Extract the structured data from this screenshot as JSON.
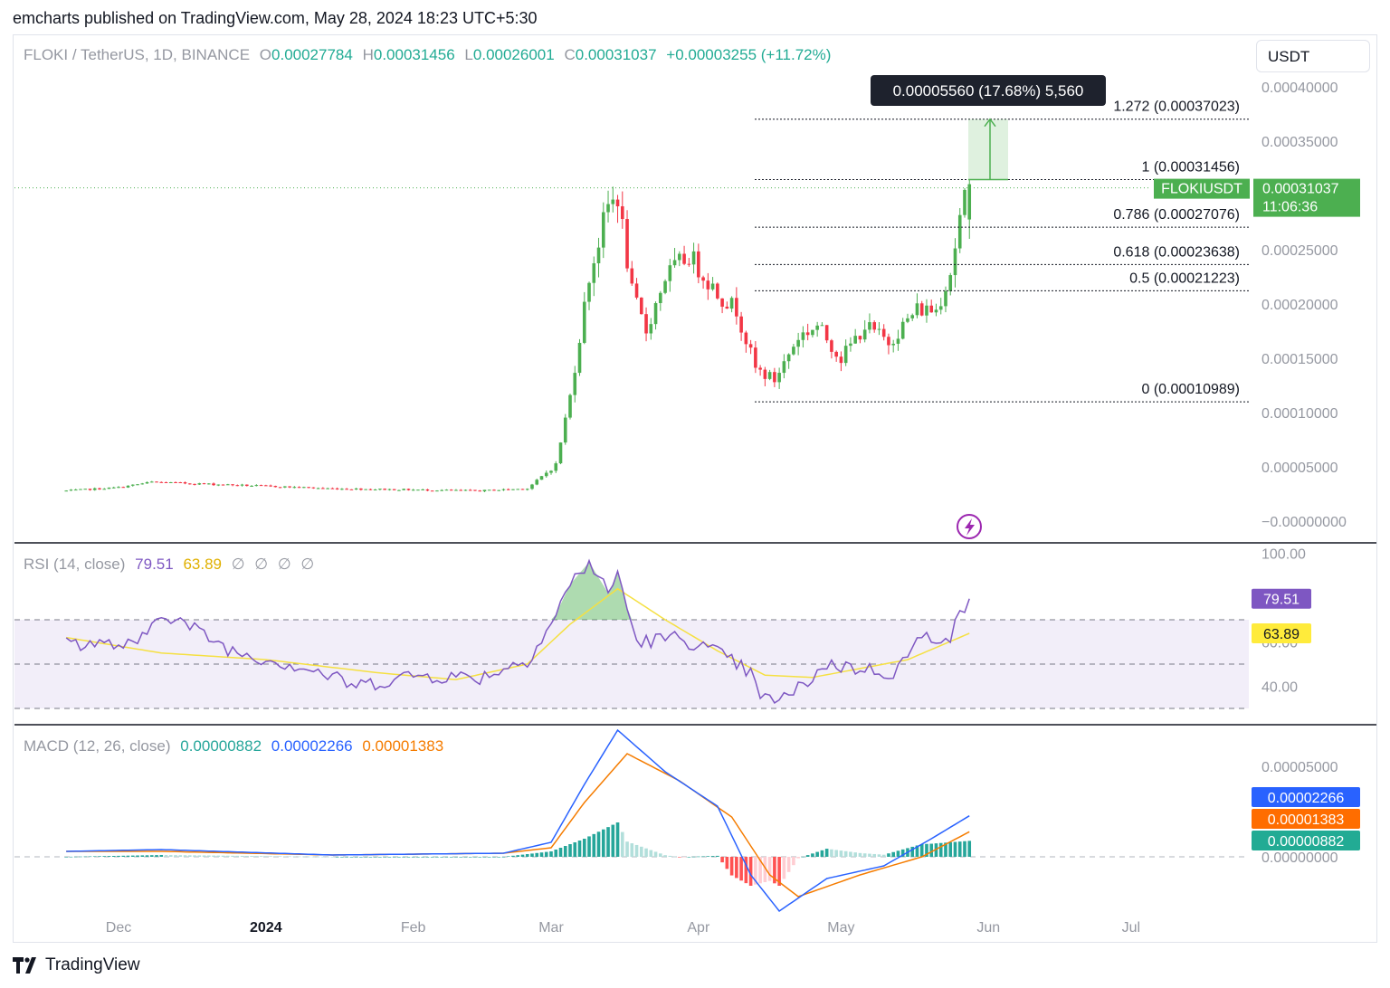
{
  "header": {
    "publish_line": "emcharts published on TradingView.com, May 28, 2024 18:23 UTC+5:30"
  },
  "symbol": {
    "title": "FLOKI / TetherUS, 1D, BINANCE",
    "o_label": "O",
    "o": "0.00027784",
    "h_label": "H",
    "h": "0.00031456",
    "l_label": "L",
    "l": "0.00026001",
    "c_label": "C",
    "c": "0.00031037",
    "change": "+0.00003255 (+11.72%)"
  },
  "currency_button": "USDT",
  "price_tag": {
    "symbol": "FLOKIUSDT",
    "price": "0.00031037",
    "countdown": "11:06:36"
  },
  "measure_tooltip": "0.00005560 (17.68%) 5,560",
  "rsi": {
    "title": "RSI (14, close)",
    "value": "79.51",
    "ma": "63.89",
    "flags": [
      "∅",
      "∅",
      "∅",
      "∅"
    ],
    "value_tag": "79.51",
    "ma_tag": "63.89",
    "axis_labels": [
      "100.00",
      "60.00",
      "40.00"
    ]
  },
  "macd": {
    "title": "MACD (12, 26, close)",
    "hist": "0.00000882",
    "macd": "0.00002266",
    "signal": "0.00001383",
    "tags": [
      "0.00002266",
      "0.00001383",
      "0.00000882"
    ],
    "axis_labels": [
      "0.00005000",
      "0.00000000"
    ]
  },
  "footer": {
    "brand": "TradingView"
  },
  "colors": {
    "up": "#4caf50",
    "down": "#f23645",
    "rsi": "#7e57c2",
    "rsi_ma": "#f5e042",
    "macd": "#2962ff",
    "signal": "#f57c00",
    "hist_up": "#26a69a",
    "hist_down": "#ff5252",
    "fib": "#131722",
    "tag_green": "#4caf50"
  },
  "chart_data": [
    {
      "type": "candlestick",
      "title": "FLOKI / TetherUS, 1D, BINANCE",
      "x_ticks": [
        "Dec",
        "2024",
        "Feb",
        "Mar",
        "Apr",
        "May",
        "Jun",
        "Jul"
      ],
      "y_ticks": [
        "0.00040000",
        "0.00035000",
        "0.00030000",
        "0.00025000",
        "0.00020000",
        "0.00015000",
        "0.00010000",
        "0.00005000",
        "−0.00000000"
      ],
      "ylim": [
        -5e-06,
        0.000425
      ],
      "key_points": [
        {
          "date": "2023-11-20",
          "close": 2.8e-05
        },
        {
          "date": "2023-12-01",
          "close": 3.1e-05
        },
        {
          "date": "2023-12-08",
          "close": 3.6e-05
        },
        {
          "date": "2024-01-15",
          "close": 3e-05
        },
        {
          "date": "2024-02-15",
          "close": 2.8e-05
        },
        {
          "date": "2024-02-25",
          "close": 3e-05
        },
        {
          "date": "2024-03-02",
          "close": 5.2e-05
        },
        {
          "date": "2024-03-05",
          "close": 0.000115
        },
        {
          "date": "2024-03-09",
          "close": 0.000225
        },
        {
          "date": "2024-03-13",
          "close": 0.00029
        },
        {
          "date": "2024-03-15",
          "close": 0.0003
        },
        {
          "date": "2024-03-18",
          "close": 0.00021
        },
        {
          "date": "2024-03-21",
          "close": 0.000175
        },
        {
          "date": "2024-03-25",
          "close": 0.000225
        },
        {
          "date": "2024-03-30",
          "close": 0.000245
        },
        {
          "date": "2024-04-05",
          "close": 0.00021
        },
        {
          "date": "2024-04-09",
          "close": 0.000195
        },
        {
          "date": "2024-04-13",
          "close": 0.00014
        },
        {
          "date": "2024-04-17",
          "close": 0.00013
        },
        {
          "date": "2024-04-22",
          "close": 0.00017
        },
        {
          "date": "2024-04-26",
          "close": 0.00018
        },
        {
          "date": "2024-05-01",
          "close": 0.00015
        },
        {
          "date": "2024-05-06",
          "close": 0.00018
        },
        {
          "date": "2024-05-11",
          "close": 0.000165
        },
        {
          "date": "2024-05-17",
          "close": 0.000195
        },
        {
          "date": "2024-05-21",
          "close": 0.000195
        },
        {
          "date": "2024-05-24",
          "close": 0.00023
        },
        {
          "date": "2024-05-26",
          "close": 0.000278
        },
        {
          "date": "2024-05-28",
          "close": 0.00031037
        }
      ],
      "fibonacci": [
        {
          "label": "1.272 (0.00037023)",
          "level": 0.00037023
        },
        {
          "label": "1 (0.00031456)",
          "level": 0.00031456
        },
        {
          "label": "0.786 (0.00027076)",
          "level": 0.00027076
        },
        {
          "label": "0.618 (0.00023638)",
          "level": 0.00023638
        },
        {
          "label": "0.5 (0.00021223)",
          "level": 0.00021223
        },
        {
          "label": "0 (0.00010989)",
          "level": 0.00010989
        }
      ]
    },
    {
      "type": "line",
      "title": "RSI (14, close)",
      "ylim": [
        20,
        100
      ],
      "bands": [
        70,
        50,
        30
      ],
      "series": [
        {
          "name": "RSI",
          "x": [
            "2023-11-20",
            "2023-12-05",
            "2023-12-10",
            "2023-12-25",
            "2024-01-10",
            "2024-01-20",
            "2024-02-01",
            "2024-02-15",
            "2024-02-25",
            "2024-03-01",
            "2024-03-05",
            "2024-03-09",
            "2024-03-13",
            "2024-03-15",
            "2024-03-19",
            "2024-03-28",
            "2024-04-05",
            "2024-04-12",
            "2024-04-14",
            "2024-04-20",
            "2024-04-28",
            "2024-05-05",
            "2024-05-12",
            "2024-05-18",
            "2024-05-24",
            "2024-05-28"
          ],
          "values": [
            60,
            58,
            74,
            56,
            48,
            40,
            45,
            44,
            52,
            68,
            86,
            96,
            82,
            91,
            60,
            62,
            55,
            46,
            34,
            35,
            50,
            48,
            46,
            62,
            63,
            79.51
          ]
        },
        {
          "name": "RSI MA",
          "x": [
            "2023-11-20",
            "2023-12-10",
            "2024-01-01",
            "2024-01-25",
            "2024-02-10",
            "2024-02-25",
            "2024-03-05",
            "2024-03-15",
            "2024-03-25",
            "2024-04-05",
            "2024-04-15",
            "2024-04-25",
            "2024-05-05",
            "2024-05-15",
            "2024-05-28"
          ],
          "values": [
            62,
            55,
            52,
            46,
            43,
            50,
            68,
            84,
            70,
            56,
            45,
            44,
            48,
            52,
            63.89
          ]
        }
      ]
    },
    {
      "type": "line",
      "title": "MACD (12, 26, close)",
      "ylim": [
        -4.2e-05,
        9.5e-05
      ],
      "series": [
        {
          "name": "MACD",
          "x": [
            "2023-11-20",
            "2023-12-10",
            "2024-01-15",
            "2024-02-20",
            "2024-03-01",
            "2024-03-08",
            "2024-03-15",
            "2024-03-25",
            "2024-04-05",
            "2024-04-12",
            "2024-04-18",
            "2024-04-28",
            "2024-05-10",
            "2024-05-20",
            "2024-05-28"
          ],
          "values": [
            3e-06,
            4e-06,
            1e-06,
            2e-06,
            8e-06,
            4e-05,
            7e-05,
            4.7e-05,
            2.8e-05,
            -1e-05,
            -3e-05,
            -1.2e-05,
            -5e-06,
            1e-05,
            2.266e-05
          ]
        },
        {
          "name": "Signal",
          "x": [
            "2023-11-20",
            "2023-12-10",
            "2024-01-15",
            "2024-02-20",
            "2024-03-01",
            "2024-03-08",
            "2024-03-17",
            "2024-03-28",
            "2024-04-08",
            "2024-04-16",
            "2024-04-22",
            "2024-05-05",
            "2024-05-18",
            "2024-05-28"
          ],
          "values": [
            3e-06,
            3e-06,
            1e-06,
            2e-06,
            5e-06,
            3e-05,
            5.7e-05,
            4.2e-05,
            2.2e-05,
            -1e-05,
            -2.2e-05,
            -1e-05,
            0.0,
            1.383e-05
          ]
        },
        {
          "name": "Histogram",
          "x": [
            "2024-03-08",
            "2024-03-14",
            "2024-03-20",
            "2024-04-05",
            "2024-04-14",
            "2024-04-25",
            "2024-05-10",
            "2024-05-28"
          ],
          "values": [
            1.5e-05,
            3e-05,
            -1.2e-05,
            -1.8e-05,
            -2.2e-05,
            6e-06,
            3e-06,
            8.82e-06
          ]
        }
      ]
    }
  ]
}
